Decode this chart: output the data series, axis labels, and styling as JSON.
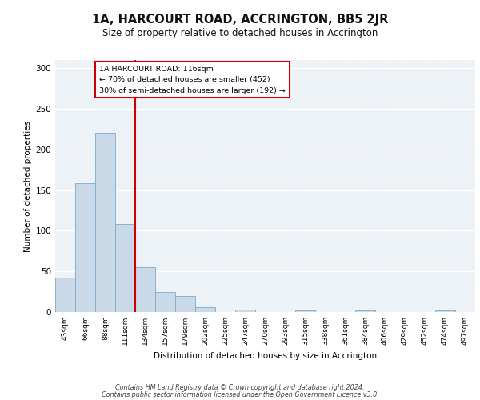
{
  "title": "1A, HARCOURT ROAD, ACCRINGTON, BB5 2JR",
  "subtitle": "Size of property relative to detached houses in Accrington",
  "xlabel": "Distribution of detached houses by size in Accrington",
  "ylabel": "Number of detached properties",
  "bar_labels": [
    "43sqm",
    "66sqm",
    "88sqm",
    "111sqm",
    "134sqm",
    "157sqm",
    "179sqm",
    "202sqm",
    "225sqm",
    "247sqm",
    "270sqm",
    "293sqm",
    "315sqm",
    "338sqm",
    "361sqm",
    "384sqm",
    "406sqm",
    "429sqm",
    "452sqm",
    "474sqm",
    "497sqm"
  ],
  "bar_values": [
    42,
    158,
    220,
    108,
    55,
    25,
    20,
    6,
    0,
    3,
    0,
    0,
    2,
    0,
    0,
    2,
    0,
    0,
    0,
    2,
    0
  ],
  "bar_color": "#c9d9e8",
  "bar_edge_color": "#7aaac8",
  "vline_x": 3.5,
  "vline_color": "#cc0000",
  "annotation_box_text": "1A HARCOURT ROAD: 116sqm\n← 70% of detached houses are smaller (452)\n30% of semi-detached houses are larger (192) →",
  "ylim": [
    0,
    310
  ],
  "yticks": [
    0,
    50,
    100,
    150,
    200,
    250,
    300
  ],
  "background_color": "#edf2f7",
  "grid_color": "#ffffff",
  "footer_line1": "Contains HM Land Registry data © Crown copyright and database right 2024.",
  "footer_line2": "Contains public sector information licensed under the Open Government Licence v3.0."
}
